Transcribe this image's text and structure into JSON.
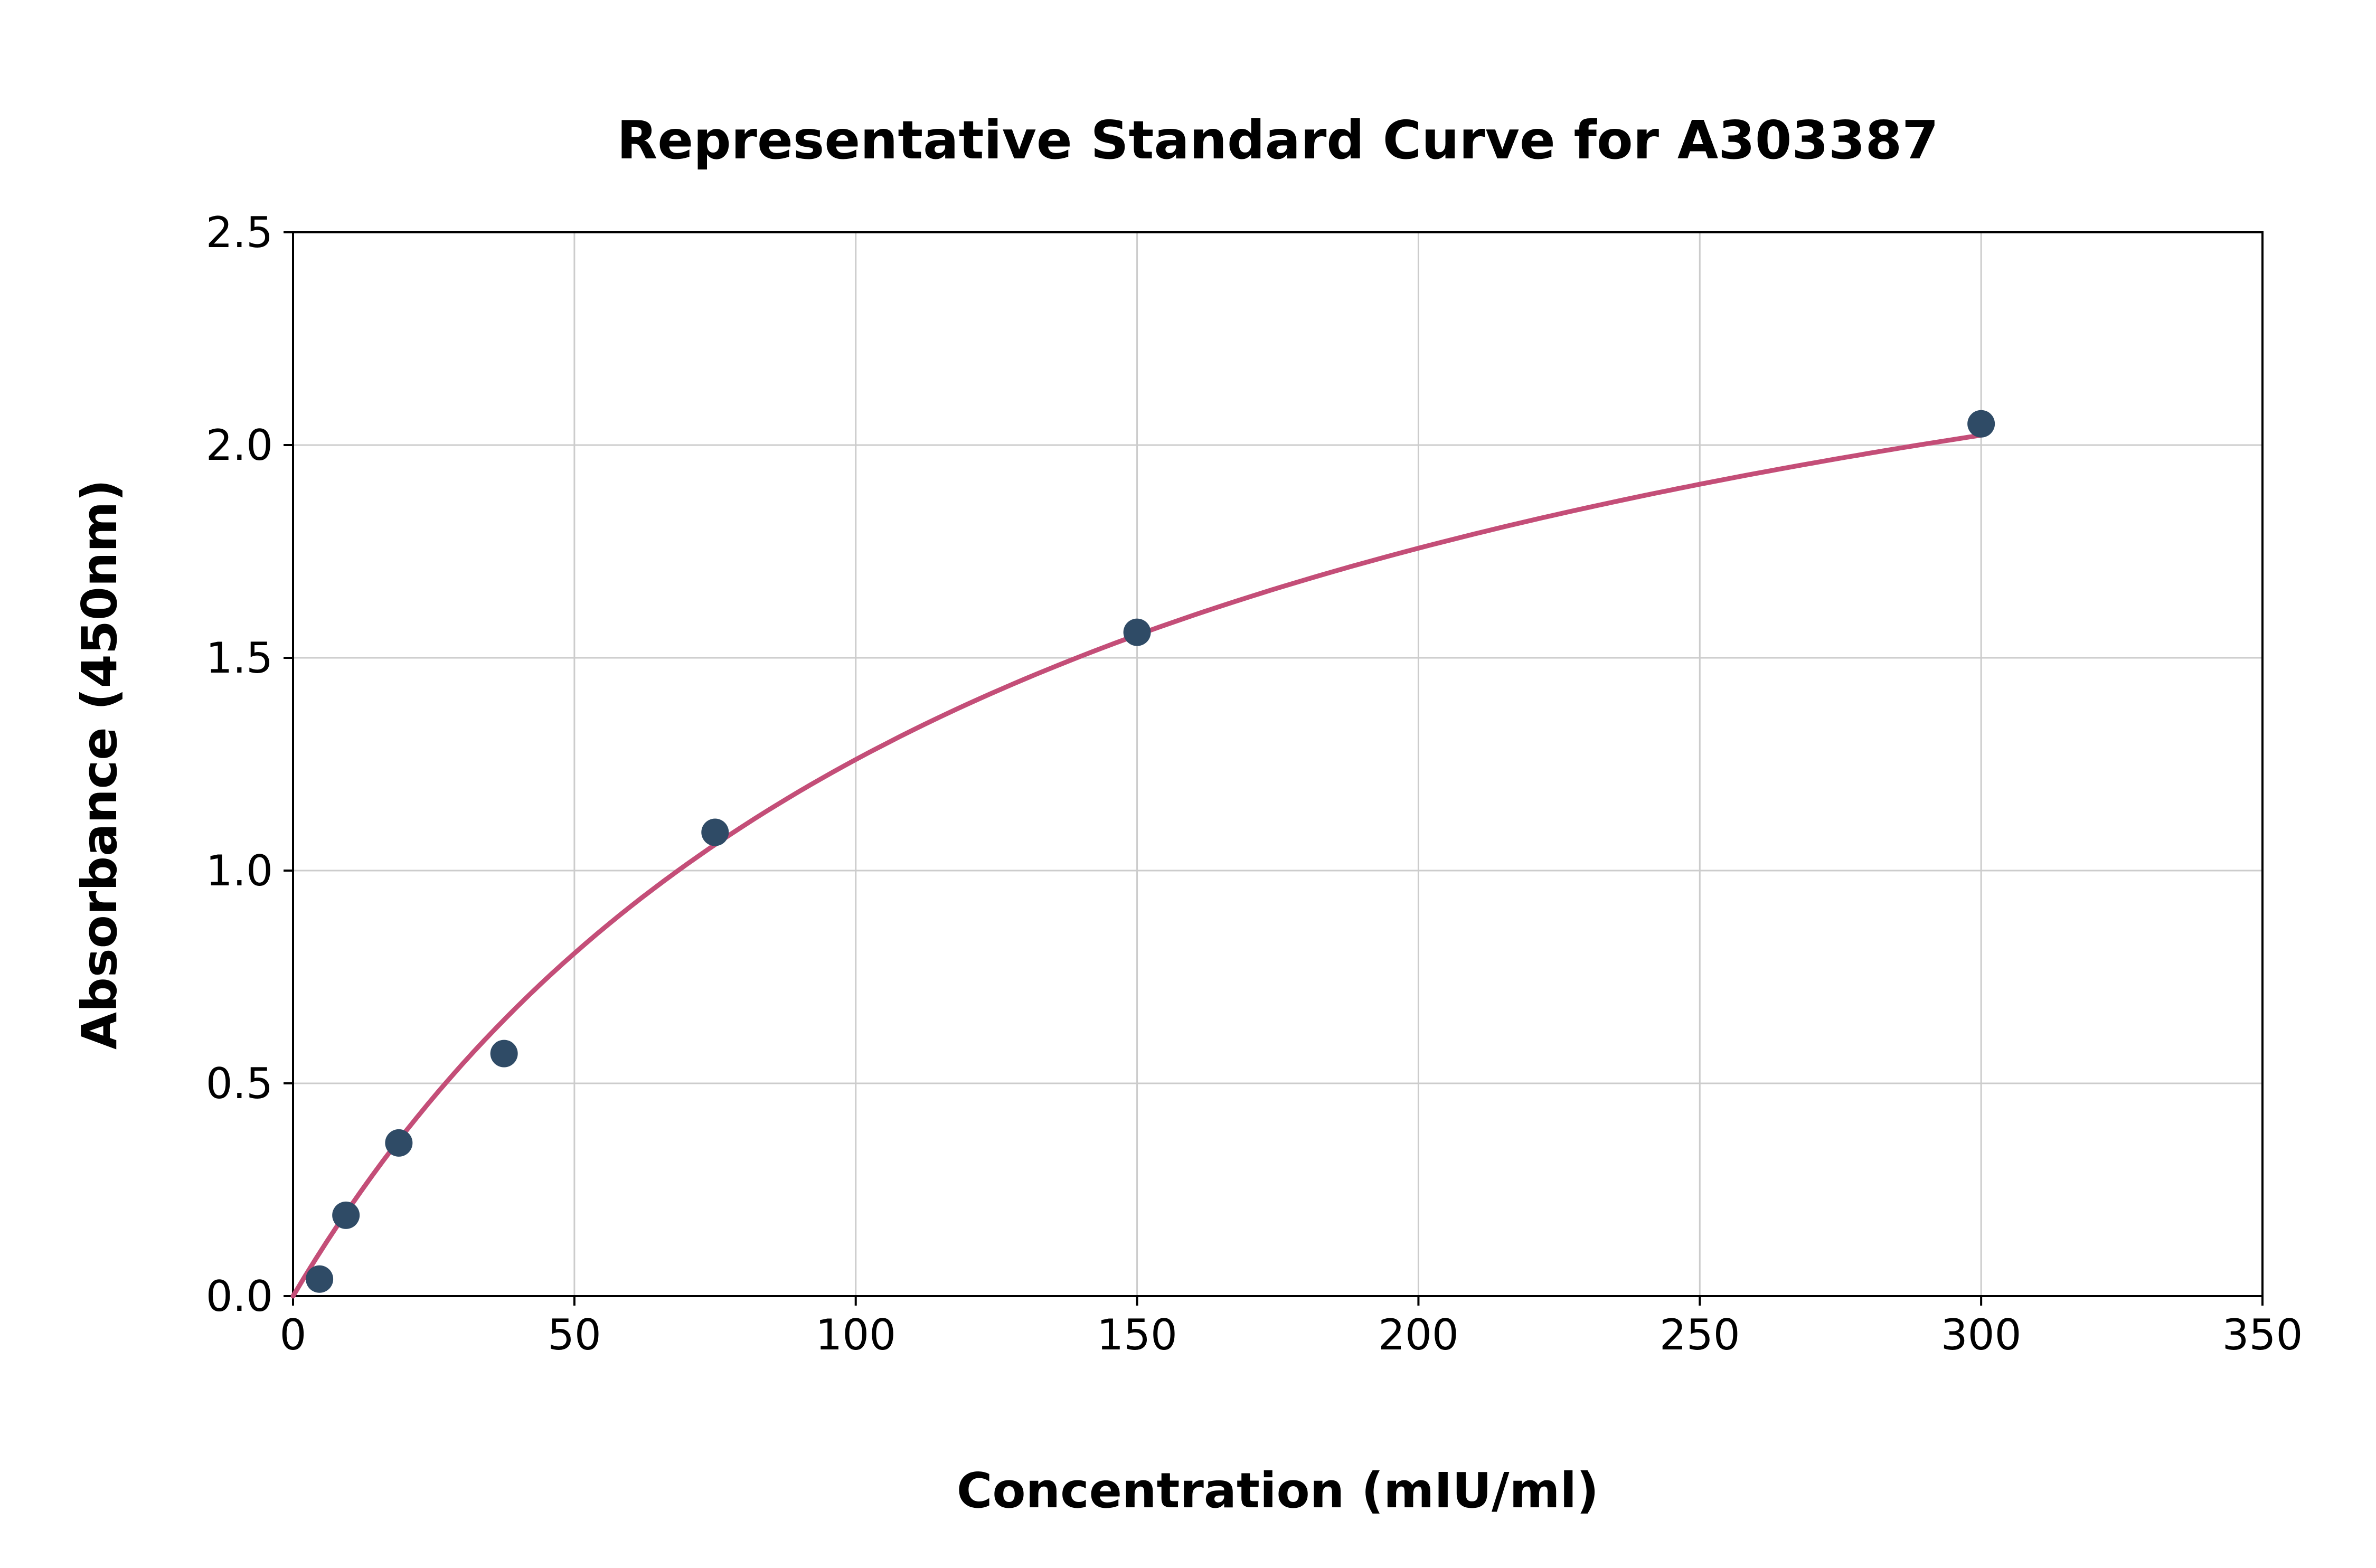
{
  "figure": {
    "background": "#ffffff"
  },
  "chart_data": {
    "type": "scatter",
    "title": "Representative Standard Curve for A303387",
    "xlabel": "Concentration (mIU/ml)",
    "ylabel": "Absorbance (450nm)",
    "x": [
      4.7,
      9.4,
      18.8,
      37.5,
      75,
      150,
      300
    ],
    "y": [
      0.04,
      0.19,
      0.36,
      0.57,
      1.09,
      1.56,
      2.05
    ],
    "xlim": [
      0,
      350
    ],
    "ylim": [
      0.0,
      2.5
    ],
    "x_ticks": [
      0,
      50,
      100,
      150,
      200,
      250,
      300,
      350
    ],
    "x_tick_labels": [
      "0",
      "50",
      "100",
      "150",
      "200",
      "250",
      "300",
      "350"
    ],
    "y_ticks": [
      0.0,
      0.5,
      1.0,
      1.5,
      2.0,
      2.5
    ],
    "y_tick_labels": [
      "0.0",
      "0.5",
      "1.0",
      "1.5",
      "2.0",
      "2.5"
    ],
    "grid": true,
    "legend_position": "none",
    "fit_curve": {
      "model": "saturation",
      "vmax": 2.9,
      "km": 130,
      "x_start": 0,
      "x_end": 300
    },
    "colors": {
      "curve": "#c44e78",
      "points": "#2f4b66",
      "grid": "#cccccc",
      "frame": "#000000",
      "text": "#000000"
    }
  }
}
